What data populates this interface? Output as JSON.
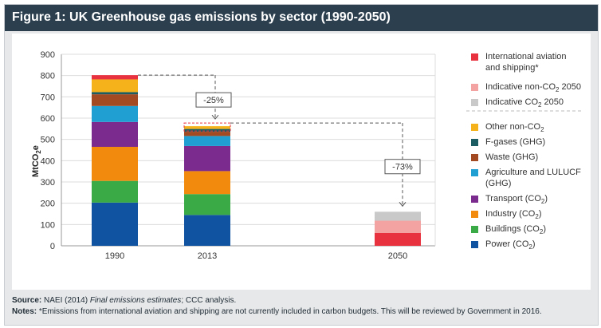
{
  "title": "Figure 1: UK Greenhouse gas emissions by sector (1990-2050)",
  "footer": {
    "source_label": "Source:",
    "source_text_a": " NAEI (2014) ",
    "source_italic": "Final emissions estimates",
    "source_text_b": "; CCC analysis.",
    "notes_label": "Notes:",
    "notes_text": " *Emissions from international aviation and shipping are not currently included in carbon budgets. This will be reviewed by Government in 2016."
  },
  "chart_data": {
    "type": "bar",
    "stacked": true,
    "ylabel": "MtCO",
    "ylabel_sub": "2",
    "ylabel_suffix": "e",
    "ylim": [
      0,
      900
    ],
    "yticks": [
      "0",
      "100",
      "200",
      "300",
      "400",
      "500",
      "600",
      "700",
      "800",
      "900"
    ],
    "categories": [
      "1990",
      "2013",
      "2050"
    ],
    "series": [
      {
        "name": "Power (CO2)",
        "color": "#1053a0",
        "values": [
          203,
          145,
          0
        ]
      },
      {
        "name": "Buildings (CO2)",
        "color": "#3aaa47",
        "values": [
          102,
          98,
          0
        ]
      },
      {
        "name": "Industry (CO2)",
        "color": "#f28a0e",
        "values": [
          160,
          108,
          0
        ]
      },
      {
        "name": "Transport (CO2)",
        "color": "#7b2a8e",
        "values": [
          117,
          118,
          0
        ]
      },
      {
        "name": "Agriculture and LULUCF (GHG)",
        "color": "#1f9fd2",
        "values": [
          75,
          47,
          0
        ]
      },
      {
        "name": "Waste (GHG)",
        "color": "#a34a22",
        "values": [
          55,
          20,
          0
        ]
      },
      {
        "name": "F-gases (GHG)",
        "color": "#1c5c63",
        "values": [
          10,
          13,
          0
        ]
      },
      {
        "name": "Other non-CO2",
        "color": "#f6b21a",
        "values": [
          60,
          13,
          0
        ]
      },
      {
        "name": "International aviation and shipping*",
        "color": "#e8323f",
        "values": [
          20,
          0,
          60
        ]
      },
      {
        "name": "Indicative non-CO2 2050",
        "color": "#f4a3a3",
        "values": [
          0,
          0,
          58
        ]
      },
      {
        "name": "Indicative CO2 2050",
        "color": "#c9c9c9",
        "values": [
          0,
          0,
          42
        ]
      }
    ],
    "annotations": [
      {
        "text": "-25%"
      },
      {
        "text": "-73%"
      }
    ],
    "legend_position": "right",
    "grid": true
  },
  "legend": [
    {
      "swatch": "#e8323f",
      "lines": [
        "International aviation",
        "and shipping*"
      ]
    },
    {
      "swatch": "#f4a3a3",
      "text": "Indicative non-CO",
      "sub": "2",
      "after": " 2050"
    },
    {
      "swatch": "#c9c9c9",
      "text": "Indicative CO",
      "sub": "2",
      "after": " 2050"
    },
    {
      "swatch": "#f6b21a",
      "text": "Other non-CO",
      "sub": "2",
      "after": ""
    },
    {
      "swatch": "#1c5c63",
      "text": "F-gases (GHG)",
      "sub": "",
      "after": ""
    },
    {
      "swatch": "#a34a22",
      "text": "Waste (GHG)",
      "sub": "",
      "after": ""
    },
    {
      "swatch": "#1f9fd2",
      "lines": [
        "Agriculture and LULUCF",
        "(GHG)"
      ]
    },
    {
      "swatch": "#7b2a8e",
      "text": "Transport (CO",
      "sub": "2",
      "after": ")"
    },
    {
      "swatch": "#f28a0e",
      "text": "Industry (CO",
      "sub": "2",
      "after": ")"
    },
    {
      "swatch": "#3aaa47",
      "text": "Buildings (CO",
      "sub": "2",
      "after": ")"
    },
    {
      "swatch": "#1053a0",
      "text": "Power (CO",
      "sub": "2",
      "after": ")"
    }
  ]
}
